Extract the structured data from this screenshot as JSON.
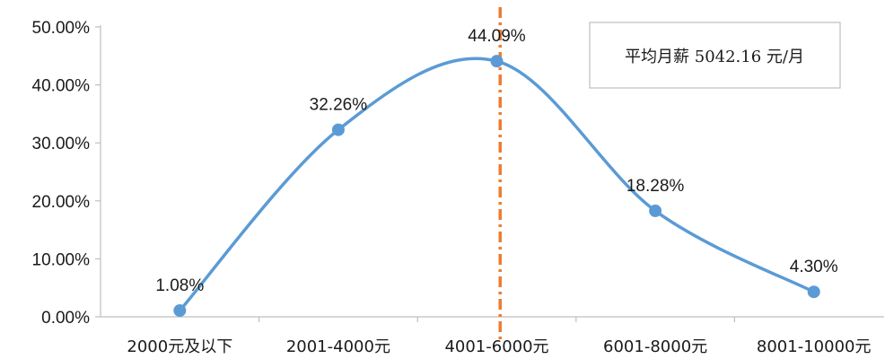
{
  "chart_data": {
    "type": "line",
    "smooth": true,
    "categories": [
      "2000元及以下",
      "2001-4000元",
      "4001-6000元",
      "6001-8000元",
      "8001-10000元"
    ],
    "series": [
      {
        "values": [
          1.08,
          32.26,
          44.09,
          18.28,
          4.3
        ]
      }
    ],
    "data_labels": [
      "1.08%",
      "32.26%",
      "44.09%",
      "18.28%",
      "4.30%"
    ],
    "y_ticks": [
      0,
      10,
      20,
      30,
      40,
      50
    ],
    "y_tick_labels": [
      "0.00%",
      "10.00%",
      "20.00%",
      "30.00%",
      "40.00%",
      "50.00%"
    ],
    "ylim": [
      0,
      50
    ],
    "grid": false,
    "reference_line": {
      "value": 5042.16,
      "style": "dash-dot"
    },
    "annotation": "平均月薪 5042.16 元/月",
    "colors": {
      "line": "#5b9bd5",
      "marker": "#5b9bd5",
      "reference": "#ed7d31",
      "axis": "#bfbfbf"
    }
  }
}
